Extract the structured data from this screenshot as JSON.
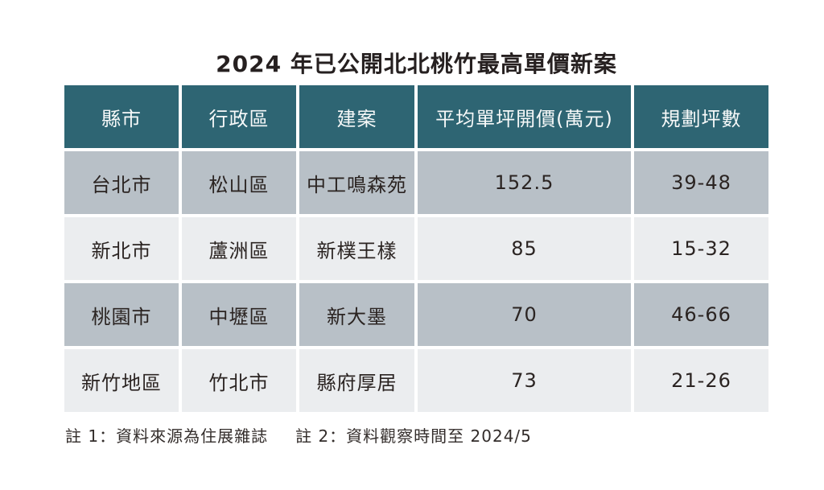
{
  "title": "2024 年已公開北北桃竹最高單價新案",
  "table": {
    "headers": [
      "縣市",
      "行政區",
      "建案",
      "平均單坪開價(萬元)",
      "規劃坪數"
    ],
    "rows": [
      {
        "cells": [
          "台北市",
          "松山區",
          "中工鳴森苑",
          "152.5",
          "39-48"
        ]
      },
      {
        "cells": [
          "新北市",
          "蘆洲區",
          "新樸王樣",
          "85",
          "15-32"
        ]
      },
      {
        "cells": [
          "桃園市",
          "中壢區",
          "新大墨",
          "70",
          "46-66"
        ]
      },
      {
        "cells": [
          "新竹地區",
          "竹北市",
          "縣府厚居",
          "73",
          "21-26"
        ]
      }
    ]
  },
  "notes": {
    "note1": "註 1：資料來源為住展雜誌",
    "note2": "註 2：資料觀察時間至 2024/5"
  },
  "colors": {
    "header_bg": "#2e6573",
    "header_text": "#f7f9f9",
    "row_odd_bg": "#b8c0c7",
    "row_even_bg": "#ebedef",
    "cell_text": "#2b2422",
    "title_text": "#262020",
    "page_bg": "#ffffff"
  },
  "chart_data": {
    "type": "table",
    "title": "2024 年已公開北北桃竹最高單價新案",
    "columns": [
      "縣市",
      "行政區",
      "建案",
      "平均單坪開價(萬元)",
      "規劃坪數"
    ],
    "rows": [
      [
        "台北市",
        "松山區",
        "中工鳴森苑",
        152.5,
        "39-48"
      ],
      [
        "新北市",
        "蘆洲區",
        "新樸王樣",
        85,
        "15-32"
      ],
      [
        "桃園市",
        "中壢區",
        "新大墨",
        70,
        "46-66"
      ],
      [
        "新竹地區",
        "竹北市",
        "縣府厚居",
        73,
        "21-26"
      ]
    ],
    "notes": [
      "註 1：資料來源為住展雜誌",
      "註 2：資料觀察時間至 2024/5"
    ],
    "layout": {
      "header_position": "top",
      "grid": "white-gaps",
      "zebra": true
    }
  }
}
